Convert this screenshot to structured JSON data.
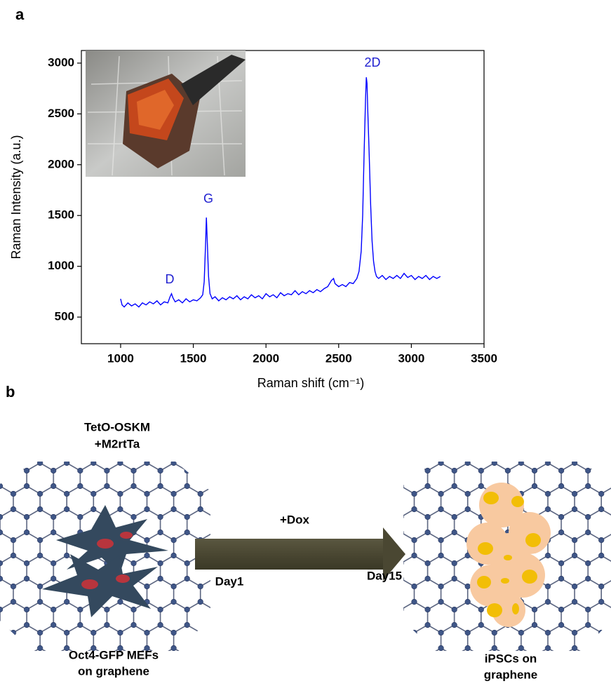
{
  "chart_data": {
    "type": "line",
    "panel_label": "a",
    "x_label": "Raman shift (cm⁻¹)",
    "y_label": "Raman Intensity (a.u.)",
    "annotations": [
      "D",
      "G",
      "2D"
    ],
    "xlim": [
      730,
      3500
    ],
    "ylim": [
      238,
      3124
    ],
    "xticks": [
      1000,
      1500,
      2000,
      2500,
      3000,
      3500
    ],
    "yticks": [
      500,
      1000,
      1500,
      2000,
      2500,
      3000
    ],
    "x": [
      1000,
      1010,
      1025,
      1050,
      1075,
      1100,
      1125,
      1150,
      1175,
      1200,
      1225,
      1250,
      1275,
      1300,
      1325,
      1340,
      1350,
      1360,
      1375,
      1400,
      1425,
      1450,
      1475,
      1500,
      1525,
      1550,
      1565,
      1575,
      1585,
      1590,
      1595,
      1605,
      1615,
      1630,
      1650,
      1675,
      1700,
      1725,
      1750,
      1775,
      1800,
      1825,
      1850,
      1875,
      1900,
      1925,
      1950,
      1975,
      2000,
      2025,
      2050,
      2075,
      2100,
      2125,
      2150,
      2175,
      2200,
      2225,
      2250,
      2275,
      2300,
      2325,
      2350,
      2375,
      2400,
      2425,
      2450,
      2465,
      2475,
      2500,
      2525,
      2550,
      2575,
      2600,
      2625,
      2640,
      2655,
      2665,
      2675,
      2685,
      2690,
      2695,
      2700,
      2710,
      2720,
      2730,
      2740,
      2750,
      2760,
      2775,
      2800,
      2825,
      2850,
      2875,
      2900,
      2925,
      2950,
      2975,
      3000,
      3025,
      3050,
      3075,
      3100,
      3125,
      3150,
      3175,
      3200
    ],
    "series": [
      {
        "color": "#0000ff",
        "values": [
          680,
          620,
          600,
          640,
          610,
          630,
          600,
          640,
          620,
          650,
          630,
          660,
          620,
          650,
          640,
          700,
          730,
          690,
          650,
          670,
          640,
          680,
          650,
          670,
          660,
          690,
          720,
          850,
          1250,
          1480,
          1300,
          900,
          730,
          680,
          700,
          660,
          690,
          670,
          700,
          680,
          710,
          670,
          700,
          680,
          720,
          690,
          710,
          680,
          730,
          700,
          720,
          690,
          740,
          710,
          730,
          720,
          760,
          720,
          750,
          730,
          760,
          740,
          770,
          750,
          780,
          800,
          860,
          880,
          830,
          800,
          820,
          800,
          840,
          830,
          880,
          950,
          1150,
          1500,
          2100,
          2650,
          2860,
          2800,
          2550,
          2100,
          1600,
          1250,
          1050,
          950,
          900,
          880,
          910,
          870,
          900,
          880,
          910,
          880,
          930,
          890,
          910,
          870,
          900,
          880,
          910,
          870,
          900,
          880,
          900
        ]
      }
    ]
  },
  "panel_b": {
    "panel_label": "b",
    "vector_line1": "TetO-OSKM",
    "vector_line2": "+M2rtTa",
    "treatment": "+Dox",
    "start_day": "Day1",
    "end_day": "Day15",
    "left_caption_line1": "Oct4-GFP MEFs",
    "left_caption_line2": "on graphene",
    "right_caption_line1": "iPSCs on",
    "right_caption_line2": "graphene"
  }
}
